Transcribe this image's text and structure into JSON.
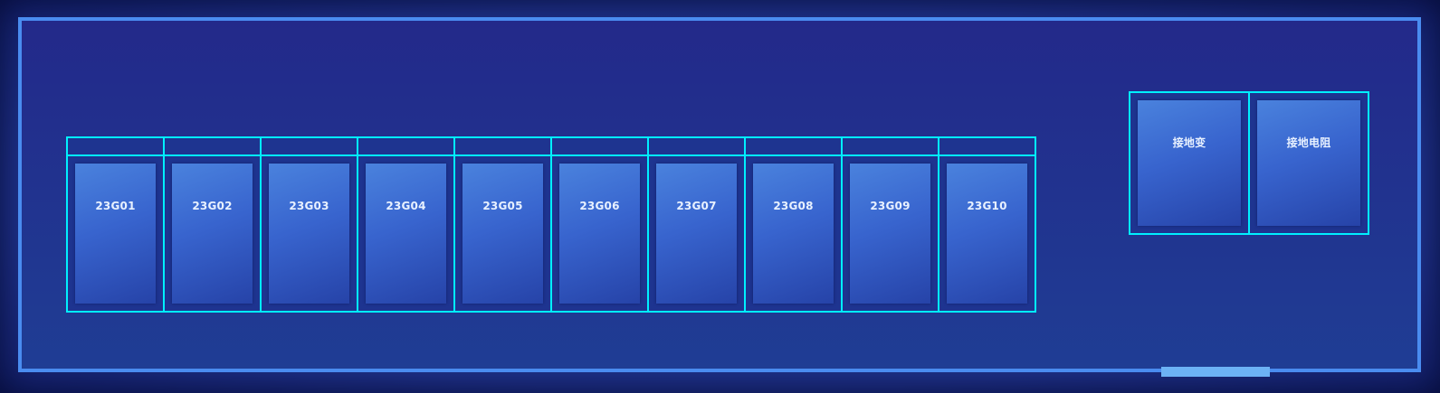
{
  "colors": {
    "background": "#1f3189",
    "wall": "#4a8cf0",
    "cabinet_outline": "#00f0ff",
    "cabinet_fill": "#3864ce",
    "door": "#6cb2f5",
    "label": "#e8f1ff"
  },
  "cabinets_main": [
    {
      "label": "23G01"
    },
    {
      "label": "23G02"
    },
    {
      "label": "23G03"
    },
    {
      "label": "23G04"
    },
    {
      "label": "23G05"
    },
    {
      "label": "23G06"
    },
    {
      "label": "23G07"
    },
    {
      "label": "23G08"
    },
    {
      "label": "23G09"
    },
    {
      "label": "23G10"
    }
  ],
  "cabinets_side": [
    {
      "label": "接地变"
    },
    {
      "label": "接地电阻"
    }
  ]
}
